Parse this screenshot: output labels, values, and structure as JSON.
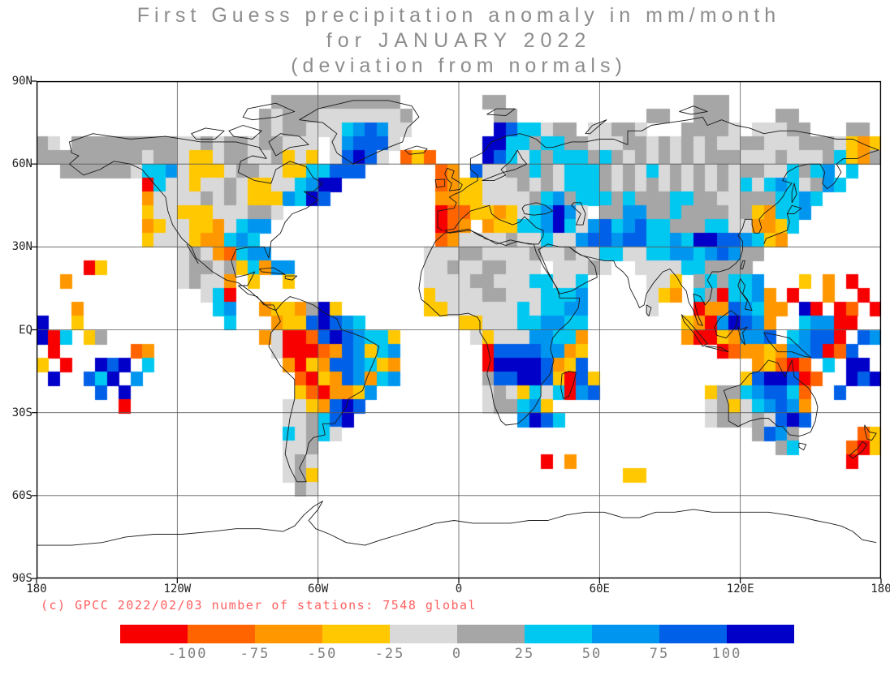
{
  "title": {
    "line1": "First Guess precipitation anomaly in mm/month",
    "line2": "for JANUARY 2022",
    "line3": "(deviation from normals)"
  },
  "copyright": "(c) GPCC 2022/02/03 number of stations: 7548 global",
  "chart_data": {
    "type": "heatmap",
    "title": "First Guess precipitation anomaly in mm/month for JANUARY 2022 (deviation from normals)",
    "units": "mm/month",
    "period": "JANUARY 2022",
    "source_note": "(c) GPCC 2022/02/03",
    "stations_global": 7548,
    "projection": "equirectangular",
    "lon_range": [
      -180,
      180
    ],
    "lat_range": [
      -90,
      90
    ],
    "grid_on": true,
    "gridlines": {
      "lat": [
        60,
        30,
        0,
        -30,
        -60
      ],
      "lon": [
        -120,
        -60,
        0,
        60,
        120
      ]
    },
    "lat_ticks": [
      {
        "label": "90N",
        "lat": 90
      },
      {
        "label": "60N",
        "lat": 60
      },
      {
        "label": "30N",
        "lat": 30
      },
      {
        "label": "EQ",
        "lat": 0
      },
      {
        "label": "30S",
        "lat": -30
      },
      {
        "label": "60S",
        "lat": -60
      },
      {
        "label": "90S",
        "lat": -90
      }
    ],
    "lon_ticks": [
      {
        "label": "180",
        "lon": -180
      },
      {
        "label": "120W",
        "lon": -120
      },
      {
        "label": "60W",
        "lon": -60
      },
      {
        "label": "0",
        "lon": 0
      },
      {
        "label": "60E",
        "lon": 60
      },
      {
        "label": "120E",
        "lon": 120
      },
      {
        "label": "180",
        "lon": 180
      }
    ],
    "legend_boundary_labels": [
      "-100",
      "-75",
      "-50",
      "-25",
      "0",
      "25",
      "50",
      "75",
      "100"
    ],
    "bins": [
      {
        "key": "r",
        "range": "< -100",
        "color": "#f80000"
      },
      {
        "key": "O",
        "range": "-100 to -75",
        "color": "#ff6400"
      },
      {
        "key": "o",
        "range": "-75 to -50",
        "color": "#ff9800"
      },
      {
        "key": "y",
        "range": "-50 to -25",
        "color": "#ffc800"
      },
      {
        "key": "l",
        "range": "-25 to 0",
        "color": "#d9d9d9"
      },
      {
        "key": "g",
        "range": "0 to 25",
        "color": "#a6a6a6"
      },
      {
        "key": "c",
        "range": "25 to 50",
        "color": "#00c8f0"
      },
      {
        "key": "b",
        "range": "50 to 75",
        "color": "#0096f0"
      },
      {
        "key": "B",
        "range": "75 to 100",
        "color": "#0060e8"
      },
      {
        "key": "D",
        "range": "> 100",
        "color": "#0000c8"
      }
    ],
    "no_data_key": ".",
    "grid": {
      "cols": 72,
      "rows": 36,
      "cell_deg": 5,
      "encoding": "run-length tokens: countKey, '.'=no data, keys map to bins",
      "rows_rle": [
        "72.",
        "20. 11g 7. 2g 16. 3g 13.",
        "19. 1g 1l 3g 7l 1g 7. 2g 11. 2g 2. 3g 4. 2g 7.",
        "19. 1g 1l 2g 2l 1l 1c 1b 1B 1b 2l 7. 1D 1B 2c 1l 2g 1. 2l 2g 1l 3. 4g 1l 1. 3l 2g 3. 2g 1.",
        "1g 1l 1. 6g 3g 2l 1g 1l 2g 1l 2g 3l 1. 1l 1b 3B 1l 7. 2D 1c 1c 1g 2c 2g 3l 1g 1g 1l 1g 1l 1g 1l 1g 2l 1g 1g 3l 1g 2g 1l 1y 1o 1y",
        "9g 1l 2g 1l 2y 1l 2g 2l 1g 1y 1l 1y 1. 1l 1B 1D 1B 1l 1. 1O 1y 1O 4. 1D 1B 1c 1l 1c 1g 3c 1g 1c 1g 1l 1g 1l 1g 1l 1g 1l 3g 3l 1g 3l 1g 1c 1y 1o 1g",
        "2. 6g 1l 2c 1b 1l 3y 1l 2g 2l 2y 2c 3B 6. 1O 1o 1. 1B 2l 2g 1c 1g 1l 3c 1g 1l 1g 1l 1c 1l 1g 1l 1g 1l 1g 1l 2g 2l 1c 1g 1c 1b 1. 1c 2.",
        "9. 1r 1c 2l 1y 2l 1g 1l 2y 2l 1c 1b 2D 8. 1O 1o 2y 3l 1g 1l 1g 1l 3c 1g 1l 1g 1l 1g 1l 1g 1l 1g 1l 1g 1l 1c 1l 1c 1b 1c 1l 1g 1b 1c 3.",
        "9. 1o 4l 1g 1l 1g 1l 3y 1b 1c 1D 1B 9. 2o 2y 4l 1g 1c 1b 1g 3c 1g 1c 3g 2c 2g 2l 3g 2c 1b 1c 5.",
        "9. 1y 2l 3y 3l 2g 1l 13. 1r 2O 2y 1o 1y 1l 1c 1b 1D 1b 1l 1. 2g 2b 2g 1c 4g 1l 1g 1y 1o 2c 1b 6.",
        "9. 1o 1y 2l 2y 1o 1l 1c 2b 14. 1r 1O 1o 1. 1o 2y 2c 1b 1D 1c 1l 1b 1B 1c 1b 1B 2c 3g 2c 2l 2o 1y 1c 7.",
        "9. 1y 3l 1y 2o 1c 1b 1c 15. 1O 1o 4l 1g 2l 1c 2l 1b 2B 1b 2B 2c 1b 1c 2D 2B 1b 1c 1y 1o 8.",
        "12. 1l 1g 1l 1o 1O 1c 2b 13. 3l 2g 4l 1g 2l 1g 2l 2c 2l 2c 2b 1c 1b 1B 1b 2g 1. 9.",
        "4. 1r 1y 6. 1l 2g 1l 1g 1y 1c 1o 2b 11. 2l 1g 2l 2g 1l 2l 1. 2l 1l 1g 1l 2. 1l 2l 1l 2c 1g 3g 11.",
        "2. 1o 9. 1l 1g 2l 1o 1. 1y 2. 1y 11. 4l 2g 3l 2c 2l 1c 5. 2l 1y 1. 1g 1c 1g 2c 1b 3. 1y 1. 1o 1. 1r 2.",
        "14. 1l 1c 1r 16. 1y 4l 2g 3l 3c 1b 5. 1l 1y 1o 1. 1c 1g 1r 2c 1b 1o 1. 1r 2. 1o 2. 1r 1.",
        "3. 1o 11. 1c 1b 2. 1o 2y 1o 1g 1D 1y 7. 2y 6l 1c 1l 2c 2b 5. 1l 3. 1r 2o 1B 1b 1c 2o 1. 1D 1r 1. 1r 1O 1. 1r",
        "1D 2. 1y 12. 1c 3. 1o 2y 1B 1D 1B 1b 1c 8. 2y 3l 2c 2b 2c 8. 1y 1o 1r 1b 1D 1B 1b 1o 2. 1c 2b 2r 2.",
        "1D 1r 1c 1. 1y 1g 13. 1o 1l 2r 1O 1B 1D 1B 1b 2c 1y 6. 1l 1y 3l 2b 2c 1o 8. 1o 2r 1y 1o 2b 1B 1. 1c 1b 2B 1r 1. 1B 1b",
        "1. 1r 6. 1O 1o 10. 1l 1r 2r 1O 1o 1B 1b 1y 1c 1b 7. 1r 4B 2b 1o 1y 11. 1r 1O 2o 1y 1o 2b 1B 1r 1O 1B 2.",
        "1y 1. 1r 2. 1D 1B 1D 1. 1c 11. 1o 1r 1y 1o 2B 1b 1c 1y 1o 7. 1r 4D 1B 1o 1y 1B 14. 1o 1y 1O 1r 1O 1. 1c 1. 2D 1.",
        "1. 1D 2. 1B 1c 1D 1. 1b 13. 1O 1r 1y 1o 1B 1b 1o 1c 1b 7. 1g 2B 2D 1B 1y 1r 1B 1y 12. 1y 1B 2D 1B 1r 1O 2. 1D 1B 1D",
        "5. 1B 1. 1D 14. 1y 1O 1r 2o 1y 1b 9. 1l 1g 1l 1y 1c 1l 1c 1r 1b 1B 9. 1y 2g 1c 1b 2B 1c 1O 2. 1B 3.",
        "7. 1r 13. 2l 1y 1o 1B 1D 1B 10. 1l 2g 1c 1b 1y 13. 1l 1g 1y 1l 1c 1b 1B 1b 1o 6.",
        "21. 2l 1g 1c 1B 1D 14. 1b 1D 1B 1c 12. 1l 2g 1l 1g 1l 1B 1D 1B 6.",
        "21. 1c 1l 1g 1c 1l 35. 1g 1B 1b 1g 5. 1O 1y",
        "21. 2l 1g 39. 1g 1c 4. 1O 1r 1y",
        "21. 1l 1g 1l 19. 1r 1. 1o 23. 1r 2.",
        "21. 1l 1g 1y 26. 2y 20.",
        "22. 1g 1l 48.",
        "72.",
        "72.",
        "72.",
        "72.",
        "72.",
        "72."
      ]
    }
  }
}
